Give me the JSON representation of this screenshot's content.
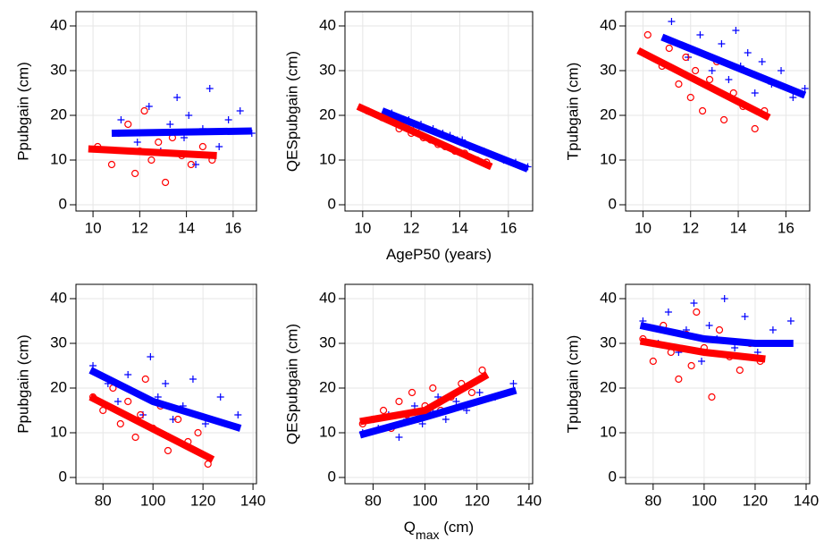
{
  "chart_data": [
    {
      "type": "scatter",
      "ylabel": "Ppubgain  (cm)",
      "xlim": [
        9.27,
        17.0
      ],
      "ylim": [
        -1.4,
        43.2
      ],
      "xticks": [
        10,
        12,
        14,
        16
      ],
      "yticks": [
        0,
        10,
        20,
        30,
        40
      ],
      "grid": true,
      "series": [
        {
          "color": "#0000ff",
          "marker": "plus",
          "x": [
            11.2,
            11.9,
            12.4,
            12.9,
            13.3,
            13.6,
            13.9,
            14.1,
            14.4,
            14.7,
            15.0,
            15.4,
            15.8,
            16.3,
            16.8
          ],
          "y": [
            19,
            14,
            22,
            12,
            18,
            24,
            15,
            20,
            9,
            17,
            26,
            13,
            19,
            21,
            16
          ],
          "fit": {
            "x": [
              10.8,
              16.8
            ],
            "y": [
              16,
              16.5
            ]
          }
        },
        {
          "color": "#ff0000",
          "marker": "circle",
          "x": [
            10.2,
            10.8,
            11.1,
            11.5,
            11.8,
            12.0,
            12.2,
            12.5,
            12.8,
            13.1,
            13.4,
            13.8,
            14.2,
            14.7,
            15.1
          ],
          "y": [
            13,
            9,
            16,
            18,
            7,
            12,
            21,
            10,
            14,
            5,
            15,
            11,
            9,
            13,
            10
          ],
          "fit": {
            "x": [
              9.8,
              15.3
            ],
            "y": [
              12.5,
              11
            ]
          }
        }
      ]
    },
    {
      "type": "scatter",
      "ylabel": "QESpubgain  (cm)",
      "xlabel": [
        "AgeP50 (years)"
      ],
      "xlim": [
        9.27,
        17.0
      ],
      "ylim": [
        -1.4,
        43.2
      ],
      "xticks": [
        10,
        12,
        14,
        16
      ],
      "yticks": [
        0,
        10,
        20,
        30,
        40
      ],
      "grid": true,
      "series": [
        {
          "color": "#0000ff",
          "marker": "plus",
          "x": [
            11.2,
            11.9,
            12.4,
            12.9,
            13.3,
            13.6,
            13.9,
            14.1,
            14.4,
            14.7,
            15.0,
            15.4,
            15.8,
            16.3,
            16.8
          ],
          "y": [
            20.5,
            19,
            18,
            17,
            16,
            15.5,
            14.5,
            14.5,
            13,
            12.5,
            12,
            11,
            10,
            9.5,
            8.5
          ],
          "fit": {
            "x": [
              10.8,
              16.8
            ],
            "y": [
              21,
              8
            ]
          }
        },
        {
          "color": "#ff0000",
          "marker": "circle",
          "x": [
            10.2,
            10.8,
            11.1,
            11.5,
            11.8,
            12.0,
            12.2,
            12.5,
            12.8,
            13.1,
            13.4,
            13.8,
            14.2,
            14.7,
            15.1
          ],
          "y": [
            21,
            19.5,
            19,
            17,
            18,
            16,
            17,
            15,
            14.5,
            13.5,
            13,
            12,
            11.5,
            10,
            9.5
          ],
          "fit": {
            "x": [
              9.8,
              15.3
            ],
            "y": [
              22,
              8.5
            ]
          }
        }
      ]
    },
    {
      "type": "scatter",
      "ylabel": "Tpubgain  (cm)",
      "xlim": [
        9.27,
        17.0
      ],
      "ylim": [
        -1.4,
        43.2
      ],
      "xticks": [
        10,
        12,
        14,
        16
      ],
      "yticks": [
        0,
        10,
        20,
        30,
        40
      ],
      "grid": true,
      "series": [
        {
          "color": "#0000ff",
          "marker": "plus",
          "x": [
            11.2,
            11.9,
            12.4,
            12.9,
            13.3,
            13.6,
            13.9,
            14.1,
            14.4,
            14.7,
            15.0,
            15.4,
            15.8,
            16.3,
            16.8
          ],
          "y": [
            41,
            33,
            38,
            30,
            36,
            28,
            39,
            31,
            34,
            25,
            32,
            27,
            30,
            24,
            26
          ],
          "fit": {
            "x": [
              10.8,
              16.8
            ],
            "y": [
              37.5,
              24.5
            ]
          }
        },
        {
          "color": "#ff0000",
          "marker": "circle",
          "x": [
            10.2,
            10.8,
            11.1,
            11.5,
            11.8,
            12.0,
            12.2,
            12.5,
            12.8,
            13.1,
            13.4,
            13.8,
            14.2,
            14.7,
            15.1
          ],
          "y": [
            38,
            31,
            35,
            27,
            33,
            24,
            30,
            21,
            28,
            32,
            19,
            25,
            22,
            17,
            21
          ],
          "fit": {
            "x": [
              9.8,
              15.3
            ],
            "y": [
              34.5,
              19.5
            ]
          }
        }
      ]
    },
    {
      "type": "scatter",
      "ylabel": "Ppubgain  (cm)",
      "xlim": [
        69.2,
        141.4
      ],
      "ylim": [
        -1.4,
        43.2
      ],
      "xticks": [
        80,
        100,
        120,
        140
      ],
      "yticks": [
        0,
        10,
        20,
        30,
        40
      ],
      "grid": true,
      "series": [
        {
          "color": "#0000ff",
          "marker": "plus",
          "x": [
            76,
            82,
            86,
            90,
            93,
            96,
            99,
            102,
            105,
            108,
            112,
            116,
            121,
            127,
            134
          ],
          "y": [
            25,
            21,
            17,
            23,
            19,
            14,
            27,
            18,
            21,
            13,
            16,
            22,
            12,
            18,
            14
          ],
          "fit": {
            "x": [
              75,
              100,
              135
            ],
            "y": [
              24,
              17,
              11
            ]
          }
        },
        {
          "color": "#ff0000",
          "marker": "circle",
          "x": [
            76,
            80,
            84,
            87,
            90,
            93,
            95,
            97,
            100,
            103,
            106,
            110,
            114,
            118,
            122
          ],
          "y": [
            18,
            15,
            20,
            12,
            17,
            9,
            14,
            22,
            11,
            16,
            6,
            13,
            8,
            10,
            3
          ],
          "fit": {
            "x": [
              75,
              124
            ],
            "y": [
              18,
              4
            ]
          }
        }
      ]
    },
    {
      "type": "scatter",
      "ylabel": "QESpubgain  (cm)",
      "xlabel": [
        "Q",
        "max",
        " (cm)"
      ],
      "xlim": [
        69.2,
        141.4
      ],
      "ylim": [
        -1.4,
        43.2
      ],
      "xticks": [
        80,
        100,
        120,
        140
      ],
      "yticks": [
        0,
        10,
        20,
        30,
        40
      ],
      "grid": true,
      "series": [
        {
          "color": "#0000ff",
          "marker": "plus",
          "x": [
            76,
            82,
            86,
            90,
            93,
            96,
            99,
            102,
            105,
            108,
            112,
            116,
            121,
            127,
            134
          ],
          "y": [
            10,
            11,
            14,
            9,
            13,
            16,
            12,
            15,
            18,
            13,
            17,
            15,
            19,
            18,
            21
          ],
          "fit": {
            "x": [
              75,
              100,
              135
            ],
            "y": [
              9.5,
              13.5,
              19.5
            ]
          }
        },
        {
          "color": "#ff0000",
          "marker": "circle",
          "x": [
            76,
            80,
            84,
            87,
            90,
            93,
            95,
            97,
            100,
            103,
            106,
            110,
            114,
            118,
            122
          ],
          "y": [
            12,
            13,
            15,
            11,
            17,
            14,
            19,
            13,
            16,
            20,
            15,
            18,
            21,
            19,
            24
          ],
          "fit": {
            "x": [
              75,
              100,
              124
            ],
            "y": [
              12.5,
              15,
              23
            ]
          }
        }
      ]
    },
    {
      "type": "scatter",
      "ylabel": "Tpubgain  (cm)",
      "xlim": [
        69.2,
        141.4
      ],
      "ylim": [
        -1.4,
        43.2
      ],
      "xticks": [
        80,
        100,
        120,
        140
      ],
      "yticks": [
        0,
        10,
        20,
        30,
        40
      ],
      "grid": true,
      "series": [
        {
          "color": "#0000ff",
          "marker": "plus",
          "x": [
            76,
            82,
            86,
            90,
            93,
            96,
            99,
            102,
            105,
            108,
            112,
            116,
            121,
            127,
            134
          ],
          "y": [
            35,
            30,
            37,
            28,
            33,
            39,
            26,
            34,
            31,
            40,
            29,
            36,
            28,
            33,
            35
          ],
          "fit": {
            "x": [
              75,
              100,
              120,
              135
            ],
            "y": [
              34,
              31,
              30,
              30
            ]
          }
        },
        {
          "color": "#ff0000",
          "marker": "circle",
          "x": [
            76,
            80,
            84,
            87,
            90,
            93,
            95,
            97,
            100,
            103,
            106,
            110,
            114,
            118,
            122
          ],
          "y": [
            31,
            26,
            34,
            28,
            22,
            32,
            25,
            37,
            29,
            18,
            33,
            27,
            24,
            30,
            26
          ],
          "fit": {
            "x": [
              75,
              100,
              124
            ],
            "y": [
              30.5,
              28,
              26.5
            ]
          }
        }
      ]
    }
  ]
}
